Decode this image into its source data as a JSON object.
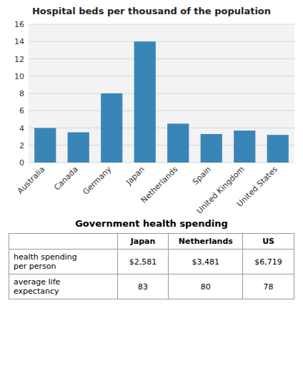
{
  "chart_data": [
    {
      "type": "bar",
      "title": "Hospital beds per thousand of the population",
      "categories": [
        "Australia",
        "Canada",
        "Germany",
        "Japan",
        "Netherlands",
        "Spain",
        "United Kingdom",
        "United States"
      ],
      "values": [
        4.0,
        3.5,
        8.0,
        14.0,
        4.5,
        3.3,
        3.7,
        3.2
      ],
      "color": "#3a85b8",
      "ylim": [
        0,
        16
      ],
      "yticks": [
        0,
        2,
        4,
        6,
        8,
        10,
        12,
        14,
        16
      ],
      "grid": true
    },
    {
      "type": "table",
      "title": "Government health spending",
      "columns": [
        null,
        "Japan",
        "Netherlands",
        "US"
      ],
      "rows": [
        [
          "health spending\nper person",
          "$2,581",
          "$3,481",
          "$6,719"
        ],
        [
          "average life\nexpectancy",
          "83",
          "80",
          "78"
        ]
      ]
    }
  ]
}
